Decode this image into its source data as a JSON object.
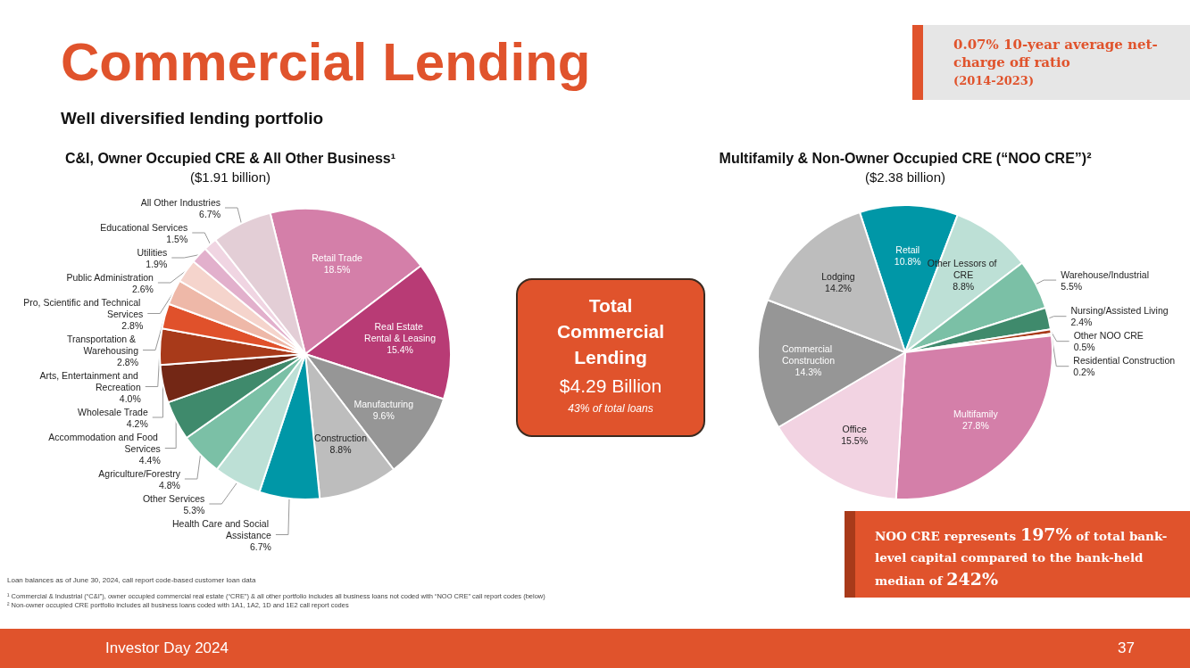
{
  "chart_data": [
    {
      "type": "pie",
      "title": "C&I, Owner Occupied CRE & All Other Business¹",
      "subtitle": "($1.91 billion)",
      "categories": [
        "Retail Trade",
        "Real Estate Rental & Leasing",
        "Manufacturing",
        "Construction",
        "Health Care and Social Assistance",
        "Other Services",
        "Agriculture/Forestry",
        "Accommodation and Food Services",
        "Wholesale Trade",
        "Arts, Entertainment and Recreation",
        "Transportation & Warehousing",
        "Pro, Scientific and Technical Services",
        "Public Administration",
        "Utilities",
        "Educational Services",
        "All Other Industries"
      ],
      "values": [
        18.5,
        15.4,
        9.6,
        8.8,
        6.7,
        5.3,
        4.8,
        4.4,
        4.2,
        4.0,
        2.8,
        2.8,
        2.6,
        1.9,
        1.5,
        6.7
      ],
      "value_labels": [
        "18.5%",
        "15.4%",
        "9.6%",
        "8.8%",
        "6.7%",
        "5.3%",
        "4.8%",
        "4.4%",
        "4.2%",
        "4.0%",
        "2.8%",
        "2.8%",
        "2.6%",
        "1.9%",
        "1.5%",
        "6.7%"
      ],
      "colors": [
        "#d47fa9",
        "#b83b75",
        "#969696",
        "#bdbdbd",
        "#0097a7",
        "#bde0d6",
        "#7bc0a6",
        "#3f8a6c",
        "#732715",
        "#a83a1a",
        "#e0512b",
        "#eeb8a8",
        "#f5d4cc",
        "#e2b0cc",
        "#f0d5e2",
        "#e3ced6"
      ],
      "annotations": [
        "Commercial Lending",
        "Well diversified lending portfolio",
        "0.07% 10-year average net-charge off ratio",
        "(2014-2023)",
        "NOO CRE represents 197% of total bank-level capital compared to the bank-held median of 242%",
        "Loan balances as of June 30, 2024, call report code-based customer loan data",
        "¹ Commercial & Industrial (“C&I”), owner occupied commercial real estate (“CRE”) & all other portfolio includes all business loans not coded with “NOO CRE” call report codes (below)",
        "² Non-owner occupied CRE portfolio includes all business loans coded with 1A1, 1A2, 1D and 1E2 call report codes",
        "Investor Day 2024",
        "37"
      ]
    },
    {
      "type": "other",
      "title": "Total Commercial Lending",
      "annotations": [
        "$4.29 Billion",
        "43% of total loans"
      ]
    },
    {
      "type": "pie",
      "title": "Multifamily & Non-Owner Occupied CRE (“NOO CRE”)²",
      "subtitle": "($2.38 billion)",
      "categories": [
        "Retail",
        "Other Lessors of CRE",
        "Warehouse/Industrial",
        "Nursing/Assisted Living",
        "Other NOO CRE",
        "Residential Construction",
        "Multifamily",
        "Office",
        "Commercial Construction",
        "Lodging"
      ],
      "values": [
        10.8,
        8.8,
        5.5,
        2.4,
        0.5,
        0.2,
        27.8,
        15.5,
        14.3,
        14.2
      ],
      "value_labels": [
        "10.8%",
        "8.8%",
        "5.5%",
        "2.4%",
        "0.5%",
        "0.2%",
        "27.8%",
        "15.5%",
        "14.3%",
        "14.2%"
      ],
      "colors": [
        "#0097a7",
        "#bde0d6",
        "#7bc0a6",
        "#3f8a6c",
        "#a83a1a",
        "#e0512b",
        "#d47fa9",
        "#f2d3e2",
        "#969696",
        "#bdbdbd"
      ]
    }
  ]
}
